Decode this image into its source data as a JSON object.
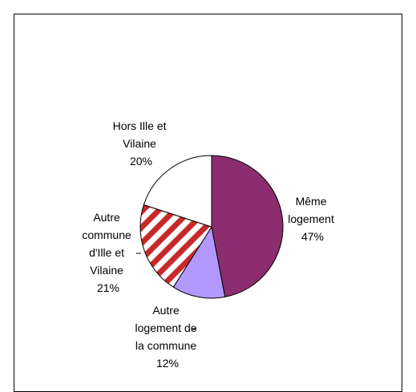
{
  "chart_data": {
    "type": "pie",
    "title": "",
    "slices": [
      {
        "label_lines": [
          "Même",
          "logement"
        ],
        "value_text": "47%",
        "value": 47,
        "color": "#8b2d6e",
        "pattern": "solid"
      },
      {
        "label_lines": [
          "Autre",
          "logement de",
          "la commune"
        ],
        "value_text": "12%",
        "value": 12,
        "color": "#b399ff",
        "pattern": "solid"
      },
      {
        "label_lines": [
          "Autre",
          "commune",
          "d'Ille et",
          "Vilaine"
        ],
        "value_text": "21%",
        "value": 21,
        "color": "#c9282a",
        "pattern": "diagonal-stripes"
      },
      {
        "label_lines": [
          "Hors Ille et",
          "Vilaine"
        ],
        "value_text": "20%",
        "value": 20,
        "color": "#ffffff",
        "pattern": "solid"
      }
    ],
    "legend": "none"
  }
}
